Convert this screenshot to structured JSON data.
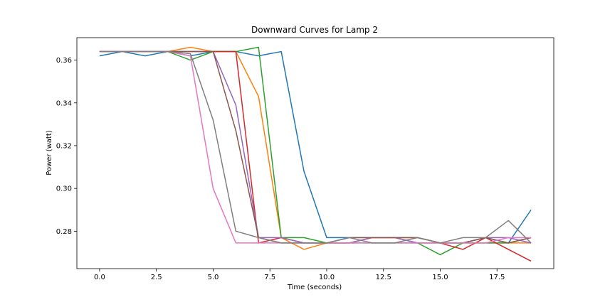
{
  "chart_data": {
    "type": "line",
    "title": "Downward Curves for Lamp 2",
    "xlabel": "Time (seconds)",
    "ylabel": "Power (watt)",
    "xlim": [
      -1.0,
      20.0
    ],
    "ylim": [
      0.2625,
      0.3705
    ],
    "xticks": [
      0.0,
      2.5,
      5.0,
      7.5,
      10.0,
      12.5,
      15.0,
      17.5
    ],
    "xtick_labels": [
      "0.0",
      "2.5",
      "5.0",
      "7.5",
      "10.0",
      "12.5",
      "15.0",
      "17.5"
    ],
    "yticks": [
      0.28,
      0.3,
      0.32,
      0.34,
      0.36
    ],
    "ytick_labels": [
      "0.28",
      "0.30",
      "0.32",
      "0.34",
      "0.36"
    ],
    "grid": false,
    "x": [
      0,
      1,
      2,
      3,
      4,
      5,
      6,
      7,
      8,
      9,
      10,
      11,
      12,
      13,
      14,
      15,
      16,
      17,
      18,
      19
    ],
    "series": [
      {
        "color": "#1f77b4",
        "values": [
          0.362,
          0.364,
          0.362,
          0.364,
          0.362,
          0.364,
          0.364,
          0.362,
          0.364,
          0.308,
          0.277,
          0.277,
          0.277,
          0.277,
          0.277,
          0.2745,
          0.2745,
          0.277,
          0.2745,
          0.29
        ]
      },
      {
        "color": "#ff7f0e",
        "values": [
          0.364,
          0.364,
          0.364,
          0.364,
          0.366,
          0.364,
          0.364,
          0.343,
          0.277,
          0.2715,
          0.2745,
          0.2745,
          0.277,
          0.277,
          0.277,
          0.2745,
          0.2745,
          0.2745,
          0.2745,
          0.2745
        ]
      },
      {
        "color": "#2ca02c",
        "values": [
          0.364,
          0.364,
          0.364,
          0.364,
          0.36,
          0.364,
          0.364,
          0.366,
          0.277,
          0.277,
          0.2745,
          0.2745,
          0.2745,
          0.2745,
          0.2745,
          0.269,
          0.2745,
          0.2745,
          0.2745,
          0.277
        ]
      },
      {
        "color": "#d62728",
        "values": [
          0.364,
          0.364,
          0.364,
          0.364,
          0.364,
          0.364,
          0.364,
          0.2745,
          0.277,
          0.2745,
          0.2745,
          0.2745,
          0.277,
          0.277,
          0.2745,
          0.2745,
          0.2715,
          0.277,
          0.2715,
          0.266
        ]
      },
      {
        "color": "#9467bd",
        "values": [
          0.364,
          0.364,
          0.364,
          0.364,
          0.364,
          0.364,
          0.339,
          0.277,
          0.277,
          0.2745,
          0.2745,
          0.2745,
          0.277,
          0.277,
          0.2745,
          0.2745,
          0.2745,
          0.277,
          0.277,
          0.2745
        ]
      },
      {
        "color": "#8c564b",
        "values": [
          0.364,
          0.364,
          0.364,
          0.364,
          0.364,
          0.364,
          0.327,
          0.277,
          0.2745,
          0.2745,
          0.2745,
          0.277,
          0.277,
          0.277,
          0.277,
          0.2745,
          0.2745,
          0.277,
          0.2745,
          0.277
        ]
      },
      {
        "color": "#e377c2",
        "values": [
          0.364,
          0.364,
          0.364,
          0.364,
          0.362,
          0.3,
          0.2745,
          0.2745,
          0.2745,
          0.2745,
          0.2745,
          0.2745,
          0.2745,
          0.2745,
          0.2745,
          0.2745,
          0.2745,
          0.2745,
          0.277,
          0.277
        ]
      },
      {
        "color": "#7f7f7f",
        "values": [
          0.364,
          0.364,
          0.364,
          0.364,
          0.363,
          0.332,
          0.28,
          0.277,
          0.2745,
          0.2745,
          0.2745,
          0.277,
          0.2745,
          0.2745,
          0.277,
          0.2745,
          0.277,
          0.277,
          0.285,
          0.2745
        ]
      }
    ]
  }
}
